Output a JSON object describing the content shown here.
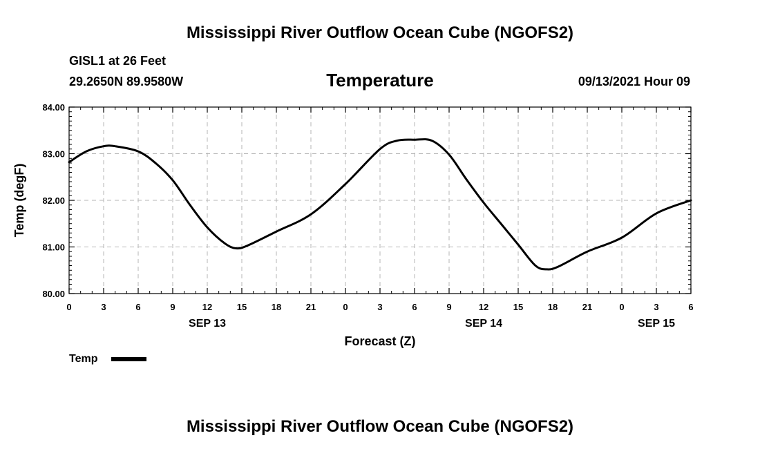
{
  "title": "Mississippi River Outflow Ocean Cube (NGOFS2)",
  "footer_title": "Mississippi River Outflow Ocean Cube (NGOFS2)",
  "station": "GISL1 at 26 Feet",
  "coords": "29.2650N  89.9580W",
  "variable": "Temperature",
  "timestamp": "09/13/2021 Hour 09",
  "legend": {
    "label": "Temp",
    "color": "#000000"
  },
  "chart_data": {
    "type": "line",
    "title": "Temperature",
    "xlabel": "Forecast (Z)",
    "ylabel": "Temp (degF)",
    "xlim": [
      0,
      54
    ],
    "ylim": [
      80,
      84
    ],
    "grid": true,
    "x_ticks": [
      0,
      3,
      6,
      9,
      12,
      15,
      18,
      21,
      24,
      27,
      30,
      33,
      36,
      39,
      42,
      45,
      48,
      51,
      54
    ],
    "x_tick_labels": [
      "0",
      "3",
      "6",
      "9",
      "12",
      "15",
      "18",
      "21",
      "0",
      "3",
      "6",
      "9",
      "12",
      "15",
      "18",
      "21",
      "0",
      "3",
      "6"
    ],
    "y_ticks": [
      80,
      81,
      82,
      83,
      84
    ],
    "y_tick_labels": [
      "80.00",
      "81.00",
      "82.00",
      "83.00",
      "84.00"
    ],
    "date_labels": [
      {
        "x": 12,
        "label": "SEP 13"
      },
      {
        "x": 36,
        "label": "SEP 14"
      },
      {
        "x": 51,
        "label": "SEP 15"
      }
    ],
    "series": [
      {
        "name": "Temp",
        "x": [
          0,
          1.5,
          3,
          4,
          6,
          7.5,
          9,
          10.5,
          12,
          13.5,
          14.5,
          15.5,
          18,
          21,
          24,
          27,
          28.5,
          30,
          31.5,
          33,
          34.5,
          36,
          37.5,
          39,
          40.5,
          41.5,
          42.5,
          45,
          48,
          51,
          54
        ],
        "y": [
          82.82,
          83.05,
          83.16,
          83.16,
          83.05,
          82.8,
          82.43,
          81.9,
          81.42,
          81.08,
          80.97,
          81.03,
          81.33,
          81.7,
          82.35,
          83.1,
          83.28,
          83.3,
          83.28,
          82.98,
          82.45,
          81.95,
          81.5,
          81.05,
          80.6,
          80.52,
          80.58,
          80.9,
          81.2,
          81.72,
          82.0
        ]
      }
    ]
  }
}
